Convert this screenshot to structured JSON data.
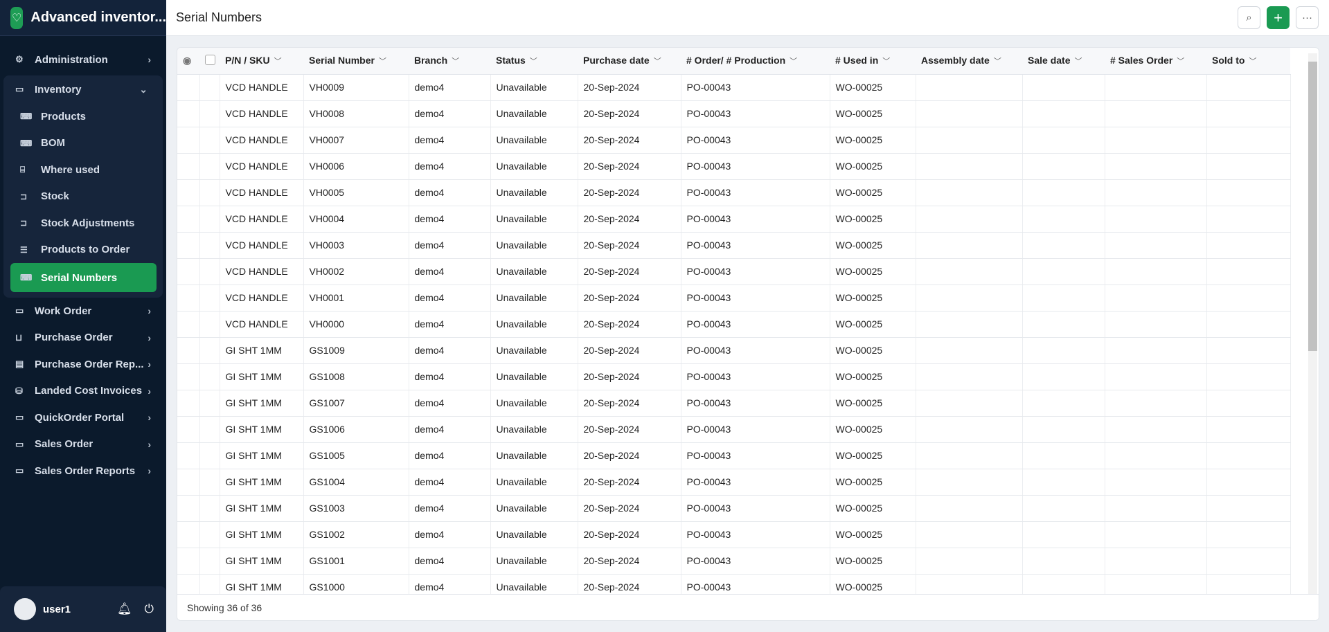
{
  "app": {
    "title": "Advanced inventor...",
    "logo_icon": "handshake-icon"
  },
  "sidebar": {
    "items_before": [
      {
        "label": "Administration",
        "icon": "gear-icon"
      }
    ],
    "group": {
      "label": "Inventory",
      "icon": "monitor-icon",
      "items": [
        {
          "label": "Products",
          "icon": "laptop-chart-icon"
        },
        {
          "label": "BOM",
          "icon": "laptop-chart-icon"
        },
        {
          "label": "Where used",
          "icon": "presentation-icon"
        },
        {
          "label": "Stock",
          "icon": "cart-icon"
        },
        {
          "label": "Stock Adjustments",
          "icon": "cart-icon"
        },
        {
          "label": "Products to Order",
          "icon": "list-icon"
        },
        {
          "label": "Serial Numbers",
          "icon": "laptop-chart-icon",
          "active": true
        }
      ]
    },
    "items_after": [
      {
        "label": "Work Order",
        "icon": "monitor-icon"
      },
      {
        "label": "Purchase Order",
        "icon": "basket-icon"
      },
      {
        "label": "Purchase Order Rep...",
        "icon": "report-icon"
      },
      {
        "label": "Landed Cost Invoices",
        "icon": "invoice-icon"
      },
      {
        "label": "QuickOrder Portal",
        "icon": "monitor-icon"
      },
      {
        "label": "Sales Order",
        "icon": "monitor-icon"
      },
      {
        "label": "Sales Order Reports",
        "icon": "monitor-icon"
      }
    ],
    "user": {
      "name": "user1"
    }
  },
  "header": {
    "title": "Serial Numbers"
  },
  "table": {
    "columns": [
      "P/N / SKU",
      "Serial Number",
      "Branch",
      "Status",
      "Purchase date",
      "# Order/ # Production",
      "# Used in",
      "Assembly date",
      "Sale date",
      "# Sales Order",
      "Sold to"
    ],
    "rows": [
      [
        "VCD HANDLE",
        "VH0009",
        "demo4",
        "Unavailable",
        "20-Sep-2024",
        "PO-00043",
        "WO-00025",
        "",
        "",
        "",
        ""
      ],
      [
        "VCD HANDLE",
        "VH0008",
        "demo4",
        "Unavailable",
        "20-Sep-2024",
        "PO-00043",
        "WO-00025",
        "",
        "",
        "",
        ""
      ],
      [
        "VCD HANDLE",
        "VH0007",
        "demo4",
        "Unavailable",
        "20-Sep-2024",
        "PO-00043",
        "WO-00025",
        "",
        "",
        "",
        ""
      ],
      [
        "VCD HANDLE",
        "VH0006",
        "demo4",
        "Unavailable",
        "20-Sep-2024",
        "PO-00043",
        "WO-00025",
        "",
        "",
        "",
        ""
      ],
      [
        "VCD HANDLE",
        "VH0005",
        "demo4",
        "Unavailable",
        "20-Sep-2024",
        "PO-00043",
        "WO-00025",
        "",
        "",
        "",
        ""
      ],
      [
        "VCD HANDLE",
        "VH0004",
        "demo4",
        "Unavailable",
        "20-Sep-2024",
        "PO-00043",
        "WO-00025",
        "",
        "",
        "",
        ""
      ],
      [
        "VCD HANDLE",
        "VH0003",
        "demo4",
        "Unavailable",
        "20-Sep-2024",
        "PO-00043",
        "WO-00025",
        "",
        "",
        "",
        ""
      ],
      [
        "VCD HANDLE",
        "VH0002",
        "demo4",
        "Unavailable",
        "20-Sep-2024",
        "PO-00043",
        "WO-00025",
        "",
        "",
        "",
        ""
      ],
      [
        "VCD HANDLE",
        "VH0001",
        "demo4",
        "Unavailable",
        "20-Sep-2024",
        "PO-00043",
        "WO-00025",
        "",
        "",
        "",
        ""
      ],
      [
        "VCD HANDLE",
        "VH0000",
        "demo4",
        "Unavailable",
        "20-Sep-2024",
        "PO-00043",
        "WO-00025",
        "",
        "",
        "",
        ""
      ],
      [
        "GI SHT 1MM",
        "GS1009",
        "demo4",
        "Unavailable",
        "20-Sep-2024",
        "PO-00043",
        "WO-00025",
        "",
        "",
        "",
        ""
      ],
      [
        "GI SHT 1MM",
        "GS1008",
        "demo4",
        "Unavailable",
        "20-Sep-2024",
        "PO-00043",
        "WO-00025",
        "",
        "",
        "",
        ""
      ],
      [
        "GI SHT 1MM",
        "GS1007",
        "demo4",
        "Unavailable",
        "20-Sep-2024",
        "PO-00043",
        "WO-00025",
        "",
        "",
        "",
        ""
      ],
      [
        "GI SHT 1MM",
        "GS1006",
        "demo4",
        "Unavailable",
        "20-Sep-2024",
        "PO-00043",
        "WO-00025",
        "",
        "",
        "",
        ""
      ],
      [
        "GI SHT 1MM",
        "GS1005",
        "demo4",
        "Unavailable",
        "20-Sep-2024",
        "PO-00043",
        "WO-00025",
        "",
        "",
        "",
        ""
      ],
      [
        "GI SHT 1MM",
        "GS1004",
        "demo4",
        "Unavailable",
        "20-Sep-2024",
        "PO-00043",
        "WO-00025",
        "",
        "",
        "",
        ""
      ],
      [
        "GI SHT 1MM",
        "GS1003",
        "demo4",
        "Unavailable",
        "20-Sep-2024",
        "PO-00043",
        "WO-00025",
        "",
        "",
        "",
        ""
      ],
      [
        "GI SHT 1MM",
        "GS1002",
        "demo4",
        "Unavailable",
        "20-Sep-2024",
        "PO-00043",
        "WO-00025",
        "",
        "",
        "",
        ""
      ],
      [
        "GI SHT 1MM",
        "GS1001",
        "demo4",
        "Unavailable",
        "20-Sep-2024",
        "PO-00043",
        "WO-00025",
        "",
        "",
        "",
        ""
      ],
      [
        "GI SHT 1MM",
        "GS1000",
        "demo4",
        "Unavailable",
        "20-Sep-2024",
        "PO-00043",
        "WO-00025",
        "",
        "",
        "",
        ""
      ]
    ],
    "footer": "Showing 36 of 36"
  },
  "colors": {
    "accent": "#1a9a52",
    "sidebar": "#0b1a2c"
  }
}
